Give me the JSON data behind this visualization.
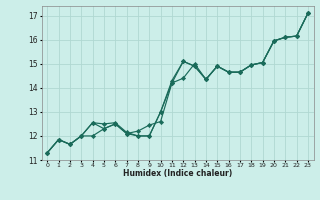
{
  "xlabel": "Humidex (Indice chaleur)",
  "bg_color": "#cceee9",
  "grid_color": "#b0d8d2",
  "line_color": "#1a6b5a",
  "xlim": [
    -0.5,
    23.5
  ],
  "ylim": [
    11.0,
    17.4
  ],
  "xticks": [
    0,
    1,
    2,
    3,
    4,
    5,
    6,
    7,
    8,
    9,
    10,
    11,
    12,
    13,
    14,
    15,
    16,
    17,
    18,
    19,
    20,
    21,
    22,
    23
  ],
  "yticks": [
    11,
    12,
    13,
    14,
    15,
    16,
    17
  ],
  "lines": [
    [
      11.3,
      11.85,
      11.65,
      12.0,
      12.0,
      12.3,
      12.5,
      12.1,
      12.0,
      12.0,
      13.0,
      14.2,
      15.1,
      14.9,
      14.35,
      14.9,
      14.65,
      14.65,
      14.95,
      15.05,
      15.95,
      16.1,
      16.15,
      17.1
    ],
    [
      11.3,
      11.85,
      11.65,
      12.0,
      12.55,
      12.3,
      12.5,
      12.1,
      12.2,
      12.45,
      12.6,
      14.2,
      14.4,
      15.0,
      14.35,
      14.9,
      14.65,
      14.65,
      14.95,
      15.05,
      15.95,
      16.1,
      16.15,
      17.1
    ],
    [
      11.3,
      11.85,
      11.65,
      12.0,
      12.55,
      12.5,
      12.55,
      12.15,
      12.0,
      12.0,
      13.0,
      14.3,
      15.1,
      14.9,
      14.35,
      14.9,
      14.65,
      14.65,
      14.95,
      15.05,
      15.95,
      16.1,
      16.15,
      17.1
    ]
  ]
}
